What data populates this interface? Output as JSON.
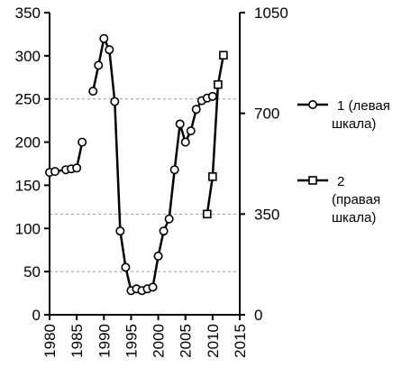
{
  "chart_data": {
    "type": "line",
    "title": "",
    "xlabel": "",
    "ylabel": "",
    "xlim": [
      1980,
      2015
    ],
    "ylim_left": [
      0,
      350
    ],
    "ylim_right": [
      0,
      1050
    ],
    "x_ticks": [
      1980,
      1985,
      1990,
      1995,
      2000,
      2005,
      2010,
      2015
    ],
    "y_left_ticks": [
      0,
      50,
      100,
      150,
      200,
      250,
      300,
      350
    ],
    "y_right_ticks": [
      0,
      350,
      700,
      1050
    ],
    "grid": "dashed horizontal lines at y-left 50, 250 and y-right 350",
    "legend_position": "right",
    "series": [
      {
        "name": "1 (левая шкала)",
        "axis": "left",
        "marker": "circle",
        "segments": [
          [
            [
              1980,
              165
            ],
            [
              1981,
              166
            ],
            [
              1983,
              168
            ],
            [
              1984,
              169
            ],
            [
              1985,
              170
            ],
            [
              1986,
              200
            ]
          ],
          [
            [
              1988,
              259
            ],
            [
              1989,
              289
            ],
            [
              1990,
              320
            ],
            [
              1991,
              307
            ],
            [
              1992,
              247
            ],
            [
              1993,
              97
            ],
            [
              1994,
              55
            ],
            [
              1995,
              28
            ],
            [
              1996,
              30
            ],
            [
              1997,
              28
            ],
            [
              1998,
              30
            ],
            [
              1999,
              32
            ],
            [
              2000,
              68
            ],
            [
              2001,
              97
            ],
            [
              2002,
              111
            ],
            [
              2003,
              168
            ],
            [
              2004,
              221
            ],
            [
              2005,
              200
            ],
            [
              2006,
              213
            ],
            [
              2007,
              238
            ],
            [
              2008,
              248
            ],
            [
              2009,
              251
            ],
            [
              2010,
              253
            ]
          ]
        ]
      },
      {
        "name": "2 (правая шкала)",
        "axis": "right",
        "marker": "square",
        "segments": [
          [
            [
              2009,
              350
            ],
            [
              2010,
              480
            ],
            [
              2011,
              800
            ],
            [
              2012,
              902
            ]
          ]
        ]
      }
    ]
  },
  "legend": [
    {
      "lines": [
        "1 (левая",
        "шкала)"
      ],
      "marker": "circle"
    },
    {
      "lines": [
        "2",
        "(правая",
        "шкала)"
      ],
      "marker": "square"
    }
  ]
}
